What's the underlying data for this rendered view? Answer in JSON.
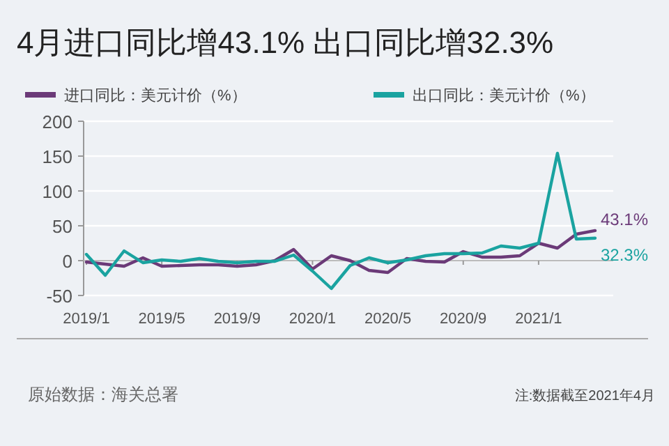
{
  "chart_data": {
    "type": "line",
    "title": "4月进口同比增43.1% 出口同比增32.3%",
    "categories": [
      "2019/1",
      null,
      null,
      null,
      "2019/5",
      null,
      null,
      null,
      "2019/9",
      null,
      null,
      null,
      "2020/1",
      null,
      null,
      null,
      "2020/5",
      null,
      null,
      null,
      "2020/9",
      null,
      null,
      null,
      "2021/1",
      null,
      null,
      null
    ],
    "series": [
      {
        "name": "进口同比：美元计价（%）",
        "color": "#6b3a78",
        "values": [
          -2,
          -5,
          -8,
          4,
          -8,
          -7,
          -6,
          -6,
          -8,
          -6,
          0,
          16,
          -12,
          7,
          0,
          -14,
          -17,
          3,
          -1,
          -2,
          13,
          5,
          5,
          7,
          25,
          18,
          38,
          43.1
        ],
        "value_labels": [
          null,
          null,
          null,
          null,
          null,
          null,
          null,
          null,
          null,
          null,
          null,
          null,
          null,
          null,
          null,
          null,
          null,
          null,
          null,
          null,
          null,
          null,
          null,
          null,
          null,
          null,
          null,
          "43.1%"
        ]
      },
      {
        "name": "出口同比：美元计价（%）",
        "color": "#1aa3a0",
        "values": [
          9,
          -21,
          14,
          -3,
          1,
          -1,
          3,
          -1,
          -3,
          -1,
          -1,
          8,
          -15,
          -40,
          -7,
          4,
          -3,
          1,
          7,
          10,
          10,
          11,
          21,
          18,
          25,
          154,
          31,
          32.3
        ],
        "value_labels": [
          null,
          null,
          null,
          null,
          null,
          null,
          null,
          null,
          null,
          null,
          null,
          null,
          null,
          null,
          null,
          null,
          null,
          null,
          null,
          null,
          null,
          null,
          null,
          null,
          null,
          null,
          null,
          "32.3%"
        ]
      }
    ],
    "ylim": [
      -50,
      200
    ],
    "yticks": [
      -50,
      0,
      50,
      100,
      150,
      200
    ],
    "grid": "y",
    "legend": "top",
    "annotations": [
      "原始数据：海关总署",
      "注:数据截至2021年4月"
    ]
  }
}
